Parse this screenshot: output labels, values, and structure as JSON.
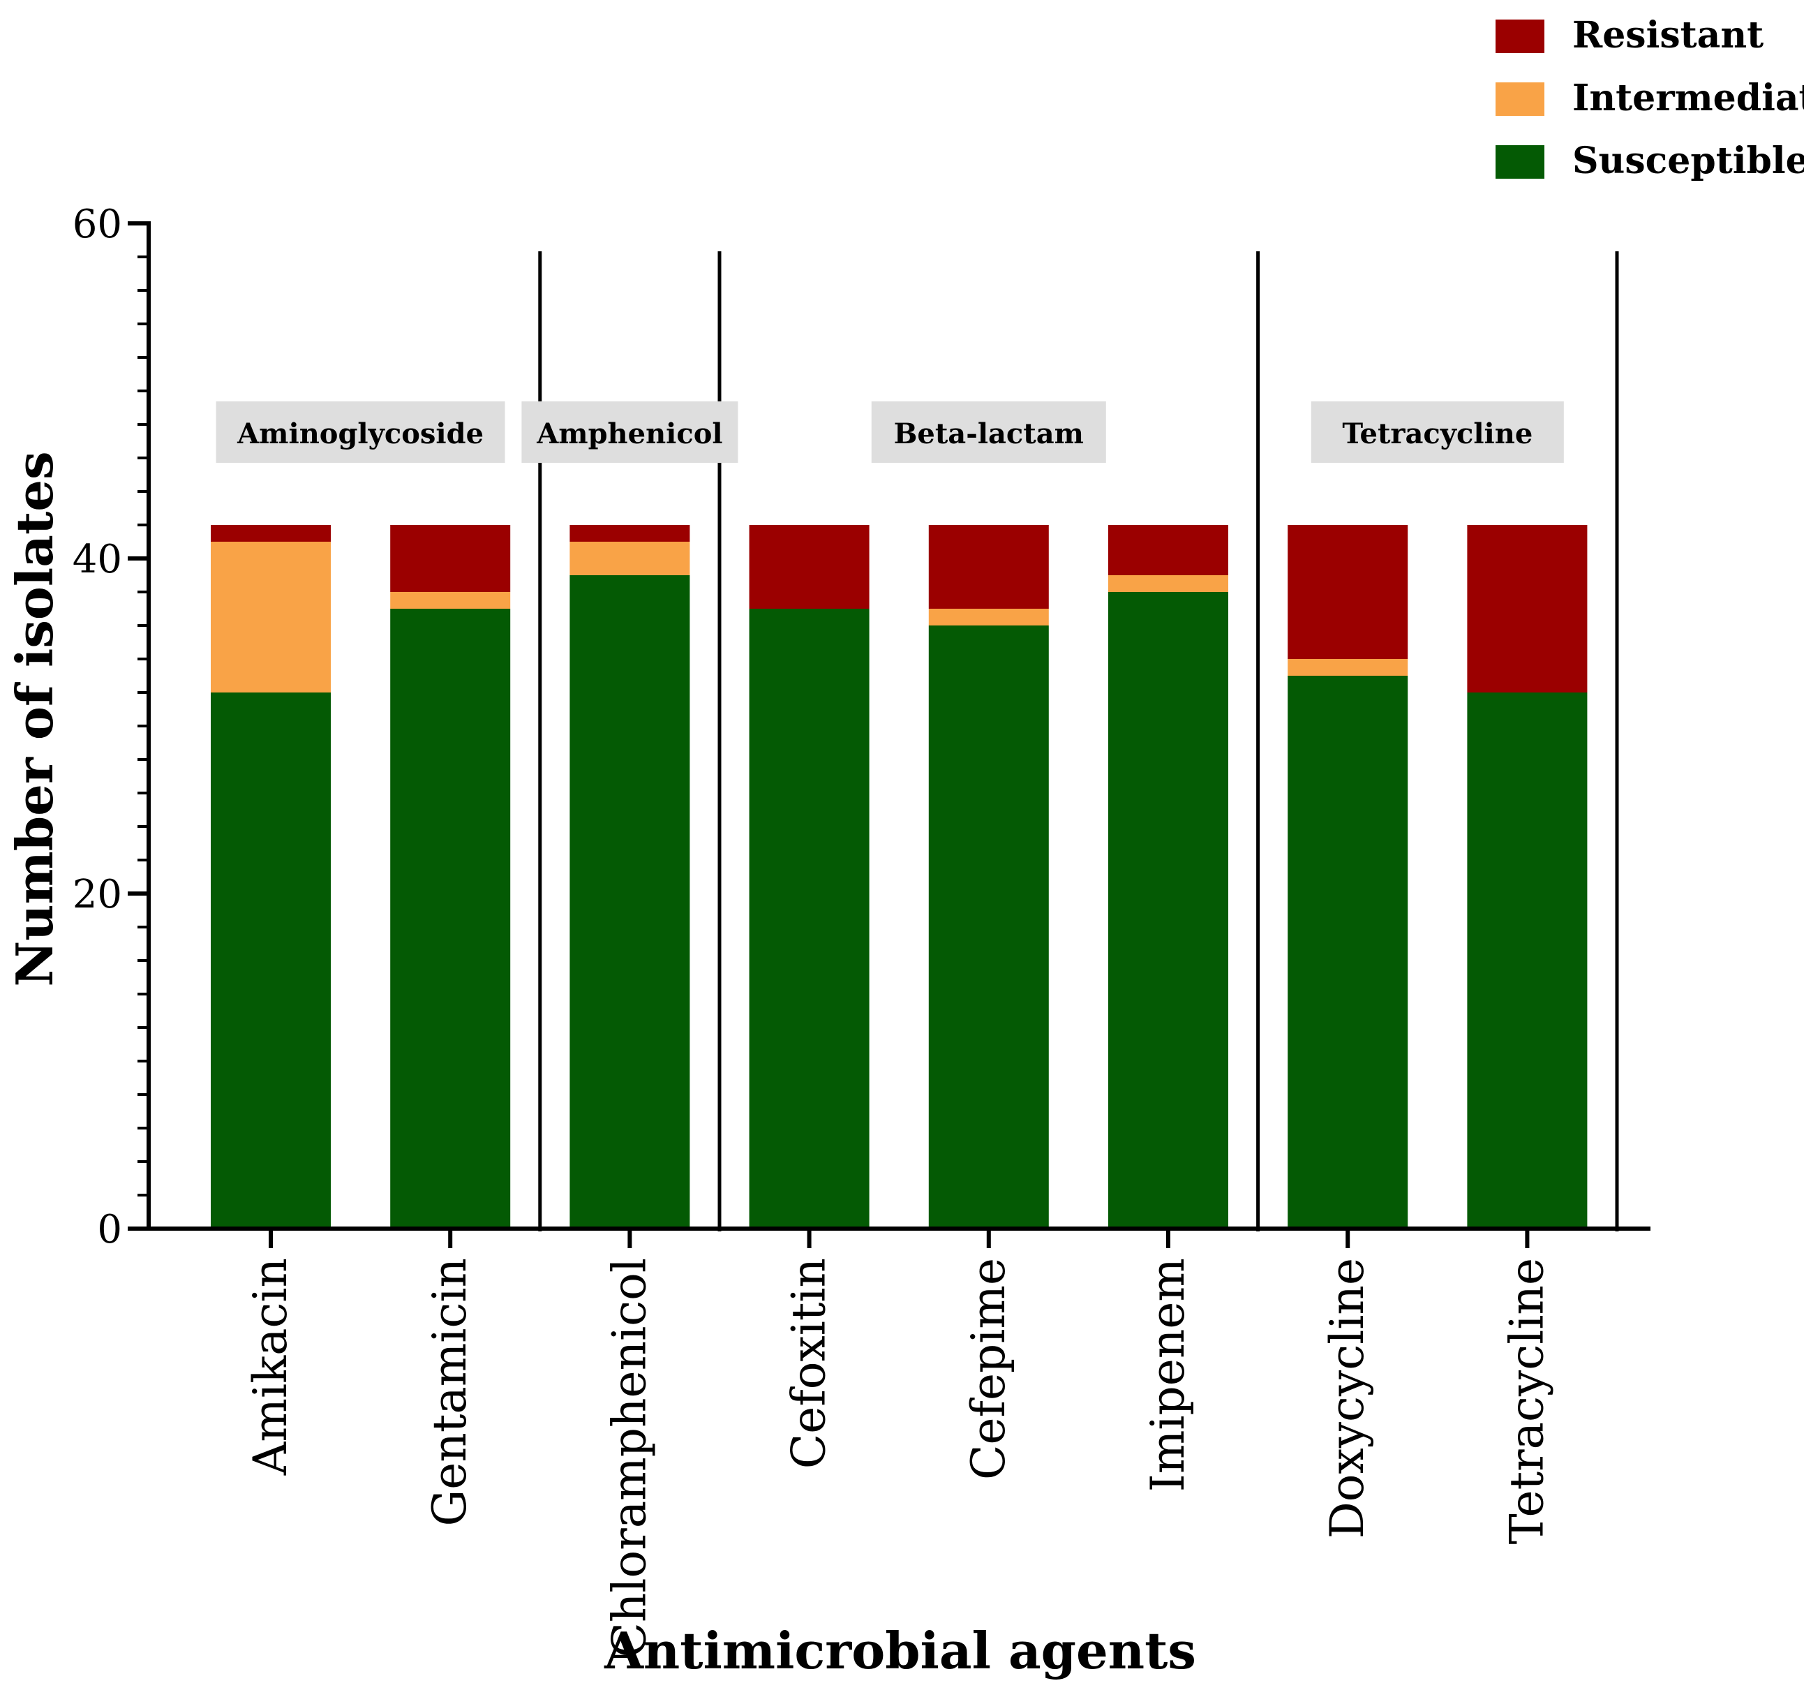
{
  "chart_data": {
    "type": "bar",
    "stacked": true,
    "title": "",
    "xlabel": "Antimicrobial agents",
    "ylabel": "Number of isolates",
    "ylim": [
      0,
      60
    ],
    "yticks": [
      0,
      20,
      40,
      60
    ],
    "minor_tick_step": 2,
    "grid": false,
    "legend_position": "top-right",
    "categories": [
      "Amikacin",
      "Gentamicin",
      "Chloramphenicol",
      "Cefoxitin",
      "Cefepime",
      "Imipenem",
      "Doxycycline",
      "Tetracycline"
    ],
    "series": [
      {
        "name": "Susceptible",
        "color": "#045a04",
        "values": [
          32,
          37,
          39,
          37,
          36,
          38,
          33,
          32
        ]
      },
      {
        "name": "Intermediate",
        "color": "#f9a347",
        "values": [
          9,
          1,
          2,
          0,
          1,
          1,
          1,
          0
        ]
      },
      {
        "name": "Resistant",
        "color": "#9b0000",
        "values": [
          1,
          4,
          1,
          5,
          5,
          3,
          8,
          10
        ]
      }
    ],
    "legend_order": [
      "Resistant",
      "Intermediate",
      "Susceptible"
    ],
    "drug_classes": [
      {
        "label": "Aminoglycoside",
        "categories": [
          "Amikacin",
          "Gentamicin"
        ]
      },
      {
        "label": "Amphenicol",
        "categories": [
          "Chloramphenicol"
        ]
      },
      {
        "label": "Beta-lactam",
        "categories": [
          "Cefoxitin",
          "Cefepime",
          "Imipenem"
        ]
      },
      {
        "label": "Tetracycline",
        "categories": [
          "Doxycycline",
          "Tetracycline"
        ]
      }
    ],
    "class_label_box_color": "#dedede"
  }
}
